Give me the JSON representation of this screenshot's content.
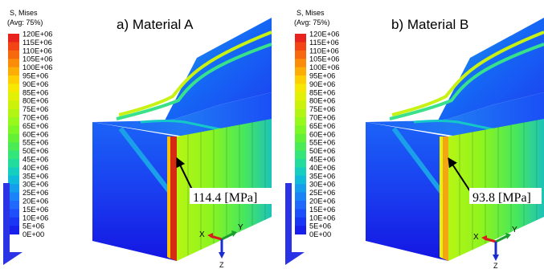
{
  "legend": {
    "title_line1": "S, Mises",
    "title_line2": "(Avg: 75%)",
    "values": [
      "120E+06",
      "115E+06",
      "110E+06",
      "105E+06",
      "100E+06",
      "95E+06",
      "90E+06",
      "85E+06",
      "80E+06",
      "75E+06",
      "70E+06",
      "65E+06",
      "60E+06",
      "55E+06",
      "50E+06",
      "45E+06",
      "40E+06",
      "35E+06",
      "30E+06",
      "25E+06",
      "20E+06",
      "15E+06",
      "10E+06",
      "5E+06",
      "0E+00"
    ],
    "colors": [
      "#e8221c",
      "#f24414",
      "#f7690e",
      "#fa8c0a",
      "#fcae06",
      "#fed004",
      "#f6e802",
      "#e2ef06",
      "#ccf20c",
      "#b2f514",
      "#97f81c",
      "#7df625",
      "#62f137",
      "#4aeb55",
      "#34e579",
      "#22dc9e",
      "#14cfc0",
      "#10badb",
      "#159eed",
      "#1c82f7",
      "#2168fc",
      "#1d4ffb",
      "#1836f4",
      "#1620ea",
      "#1210e2"
    ]
  },
  "panels": [
    {
      "title": "a) Material A",
      "annotation": "114.4 [MPa]",
      "peak_color": "#d62a12",
      "peak_fraction": 0.953
    },
    {
      "title": "b) Material B",
      "annotation": "93.8 [MPa]",
      "peak_color": "#f3a611",
      "peak_fraction": 0.782
    }
  ],
  "triad": {
    "x": "X",
    "y": "Y",
    "z": "Z",
    "x_color": "#d91c1c",
    "y_color": "#1a9e2e",
    "z_color": "#1b2ccf"
  }
}
